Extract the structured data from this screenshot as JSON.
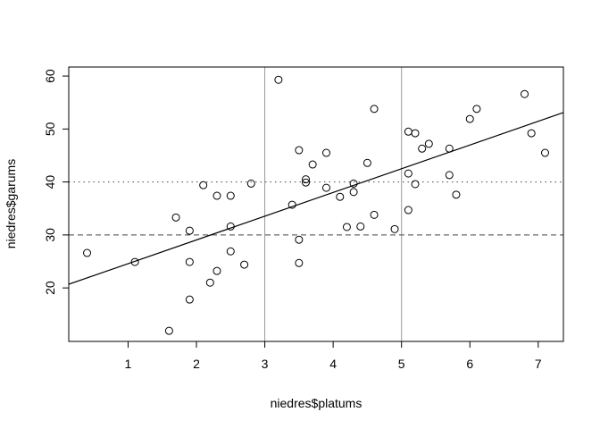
{
  "chart_data": {
    "type": "scatter",
    "x_label": "niedres$platums",
    "y_label": "niedres$garums",
    "x": [
      0.4,
      1.1,
      1.6,
      1.7,
      1.9,
      1.9,
      1.9,
      2.1,
      2.2,
      2.3,
      2.3,
      2.5,
      2.5,
      2.5,
      2.7,
      2.8,
      3.2,
      3.4,
      3.5,
      3.5,
      3.5,
      3.6,
      3.6,
      3.7,
      3.9,
      3.9,
      4.1,
      4.2,
      4.3,
      4.3,
      4.4,
      4.5,
      4.6,
      4.6,
      4.9,
      5.1,
      5.1,
      5.1,
      5.2,
      5.2,
      5.3,
      5.4,
      5.7,
      5.7,
      5.8,
      6.0,
      6.1,
      6.8,
      6.9,
      7.1
    ],
    "values": [
      26.6,
      24.9,
      11.9,
      33.3,
      30.8,
      24.9,
      17.8,
      39.4,
      21.0,
      37.4,
      23.2,
      37.4,
      31.6,
      26.9,
      24.4,
      39.7,
      59.3,
      35.7,
      46.0,
      29.1,
      24.7,
      40.5,
      39.9,
      43.3,
      45.5,
      38.9,
      37.2,
      31.5,
      39.7,
      38.1,
      31.6,
      43.6,
      53.8,
      33.8,
      31.1,
      49.5,
      41.6,
      34.7,
      49.2,
      39.6,
      46.3,
      47.2,
      46.3,
      41.3,
      37.6,
      51.9,
      53.8,
      56.6,
      49.2,
      45.5
    ],
    "xlim": [
      0.132,
      7.368
    ],
    "ylim": [
      9.9,
      61.7
    ],
    "xticks": [
      1,
      2,
      3,
      4,
      5,
      6,
      7
    ],
    "yticks": [
      20,
      30,
      40,
      50,
      60
    ],
    "abline": {
      "intercept": 20.1,
      "slope": 4.48
    },
    "vlines": [
      3,
      5
    ],
    "vline_color": "#999999",
    "hlines": [
      {
        "value": 40,
        "style": "dotted"
      },
      {
        "value": 30,
        "style": "dashed"
      }
    ]
  }
}
